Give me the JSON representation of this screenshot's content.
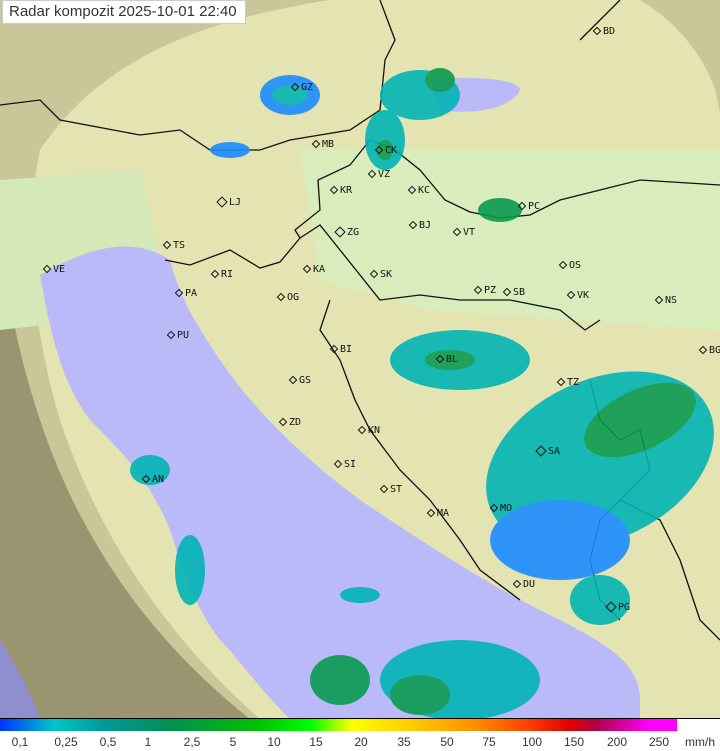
{
  "title": "Radar kompozit  2025-10-01   22:40",
  "colors": {
    "sea": "#babaf8",
    "land": "#e6e4b4",
    "outside": "#9a9470",
    "rain_light": "#1a8cff",
    "rain_mid": "#00b4b4",
    "rain_heavy": "#0a9a50"
  },
  "cities": [
    "BD",
    "GZ",
    "MB",
    "CK",
    "VZ",
    "KR",
    "KC",
    "PC",
    "LJ",
    "ZG",
    "BJ",
    "VT",
    "TS",
    "VE",
    "RI",
    "KA",
    "SK",
    "OS",
    "PA",
    "OG",
    "PZ",
    "SB",
    "VK",
    "NS",
    "PU",
    "BI",
    "BL",
    "BG",
    "GS",
    "TZ",
    "ZD",
    "KN",
    "SA",
    "SI",
    "AN",
    "ST",
    "MO",
    "MA",
    "DU",
    "PG"
  ],
  "legend": {
    "ticks": [
      "0,1",
      "0,25",
      "0,5",
      "1",
      "2,5",
      "5",
      "10",
      "15",
      "20",
      "35",
      "50",
      "75",
      "100",
      "150",
      "200",
      "250"
    ],
    "unit": "mm/h"
  }
}
